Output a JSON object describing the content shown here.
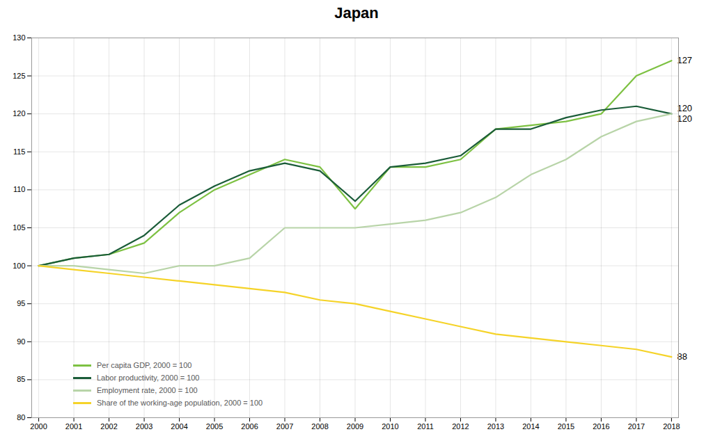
{
  "chart_data": {
    "type": "line",
    "title": "Japan",
    "x": [
      2000,
      2001,
      2002,
      2003,
      2004,
      2005,
      2006,
      2007,
      2008,
      2009,
      2010,
      2011,
      2012,
      2013,
      2014,
      2015,
      2016,
      2017,
      2018
    ],
    "series": [
      {
        "name": "Per capita GDP, 2000 = 100",
        "color": "#7dc142",
        "values": [
          100,
          101,
          101.5,
          103,
          107,
          110,
          112,
          114,
          113,
          107.5,
          113,
          113,
          114,
          118,
          118.5,
          119,
          120,
          125,
          127
        ]
      },
      {
        "name": "Labor productivity, 2000 = 100",
        "color": "#1a5c38",
        "values": [
          100,
          101,
          101.5,
          104,
          108,
          110.5,
          112.5,
          113.5,
          112.5,
          108.5,
          113,
          113.5,
          114.5,
          118,
          118,
          119.5,
          120.5,
          121,
          120
        ]
      },
      {
        "name": "Employment rate, 2000 = 100",
        "color": "#b8d4a8",
        "values": [
          100,
          100,
          99.5,
          99,
          100,
          100,
          101,
          105,
          105,
          105,
          105.5,
          106,
          107,
          109,
          112,
          114,
          117,
          119,
          120
        ]
      },
      {
        "name": "Share of the working-age population, 2000 = 100",
        "color": "#f5d328",
        "values": [
          100,
          99.5,
          99,
          98.5,
          98,
          97.5,
          97,
          96.5,
          95.5,
          95,
          94,
          93,
          92,
          91,
          90.5,
          90,
          89.5,
          89,
          88
        ]
      }
    ],
    "xlim": [
      1999.8,
      2018.2
    ],
    "xticks": [
      2000,
      2001,
      2002,
      2003,
      2004,
      2005,
      2006,
      2007,
      2008,
      2009,
      2010,
      2011,
      2012,
      2013,
      2014,
      2015,
      2016,
      2017,
      2018
    ],
    "ylim": [
      80,
      130
    ],
    "yticks": [
      80,
      85,
      90,
      95,
      100,
      105,
      110,
      115,
      120,
      125,
      130
    ],
    "grid": true,
    "legend": "lower left",
    "annotations": [
      {
        "text": "127",
        "x": 2018,
        "y": 127
      },
      {
        "text": "120",
        "x": 2018,
        "y": 120
      },
      {
        "text": "120",
        "x": 2018,
        "y": 120
      },
      {
        "text": "88",
        "x": 2018,
        "y": 88
      }
    ]
  }
}
